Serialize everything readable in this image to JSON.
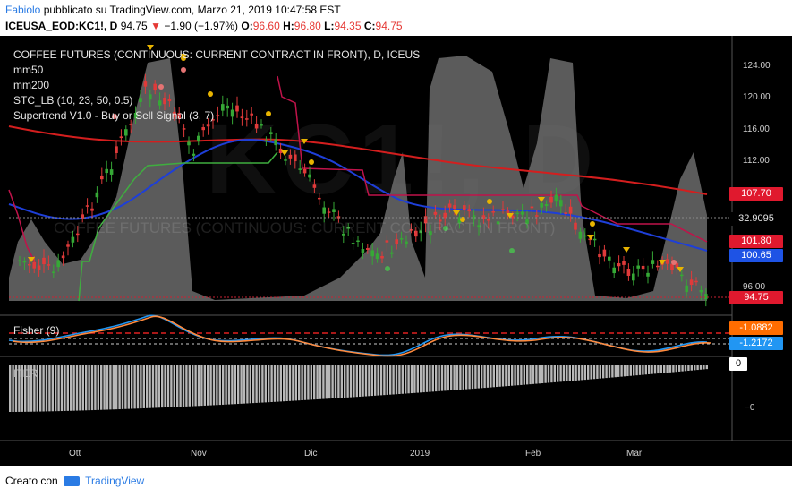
{
  "header": {
    "author": "Fabiolo",
    "published_text": "pubblicato su TradingView.com, Marzo 21, 2019 10:47:58 EST",
    "symbol": "ICEUSA_EOD:KC1!, D",
    "last": "94.75",
    "change": "−1.90 (−1.97%)",
    "o_label": "O:",
    "o_val": "96.60",
    "h_label": "H:",
    "h_val": "96.80",
    "l_label": "L:",
    "l_val": "94.35",
    "c_label": "C:",
    "c_val": "94.75"
  },
  "chart": {
    "title": "COFFEE FUTURES (CONTINUOUS: CURRENT CONTRACT IN FRONT), D, ICEUS",
    "watermark": "KC1!, D",
    "mid_watermark": "COFFEE FUTURES (CONTINUOUS: CURRENT CONTRACT IN FRONT)",
    "legend": [
      "mm50",
      "mm200",
      "STC_LB (10, 23, 50, 0.5)",
      "Supertrend V1.0 - Buy or Sell Signal (3, 7)"
    ],
    "price_ticks": [
      "124.00",
      "120.00",
      "116.00",
      "112.00",
      "96.00"
    ],
    "price_labels": [
      {
        "text": "107.70",
        "color": "#e0192e"
      },
      {
        "text": "32.9095",
        "color": "#000000"
      },
      {
        "text": "101.80",
        "color": "#e0192e"
      },
      {
        "text": "100.65",
        "color": "#1e53e5"
      },
      {
        "text": "94.75",
        "color": "#e0192e"
      }
    ],
    "fisher_title": "Fisher (9)",
    "fisher_labels": [
      {
        "text": "-1.0882",
        "color": "#ff6d00"
      },
      {
        "text": "-1.2172",
        "color": "#2196f3"
      }
    ],
    "bottom_title": "ITER",
    "bottom_ticks": [
      "0",
      "−0"
    ],
    "x_labels": [
      "Ott",
      "Nov",
      "Dic",
      "2019",
      "Feb",
      "Mar"
    ]
  },
  "footer": {
    "created_with": "Creato con",
    "brand": "TradingView"
  },
  "colors": {
    "mm50": "#1e3fd8",
    "mm200": "#d41e1e",
    "supertrend_up": "#3fae3f",
    "supertrend_down": "#c0134a",
    "candle_up": "#36a836",
    "candle_down": "#e03a3a",
    "fisher_blue": "#2196f3",
    "fisher_orange": "#ff8a3d"
  }
}
